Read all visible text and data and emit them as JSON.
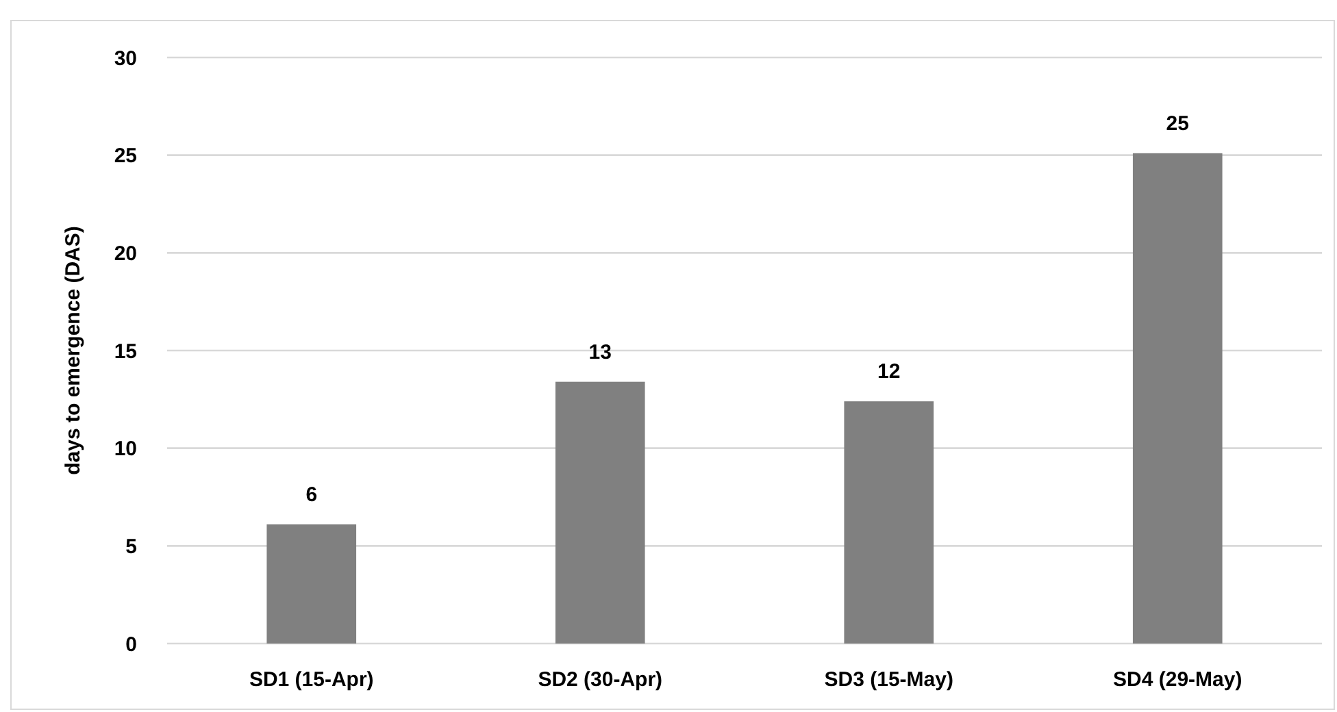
{
  "chart_data": {
    "type": "bar",
    "ylabel": "days to emergence (DAS)",
    "categories": [
      "SD1 (15-Apr)",
      "SD2 (30-Apr)",
      "SD3 (15-May)",
      "SD4 (29-May)"
    ],
    "values": [
      6.1,
      13.4,
      12.4,
      25.1
    ],
    "value_labels": [
      "6",
      "13",
      "12",
      "25"
    ],
    "color": "#808080",
    "ylim": [
      0,
      30
    ],
    "yticks": [
      0,
      5,
      10,
      15,
      20,
      25,
      30
    ],
    "grid": "y"
  }
}
